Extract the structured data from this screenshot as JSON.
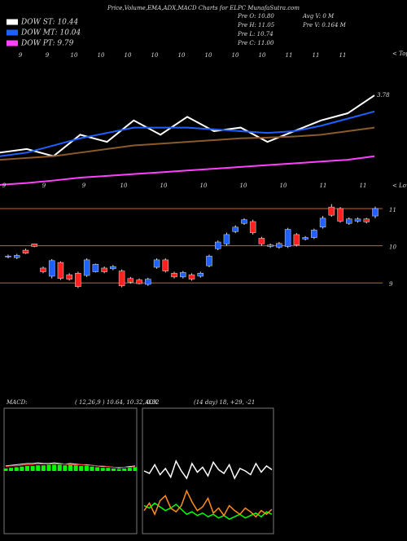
{
  "header": {
    "title": "Price,Volume,EMA,ADX,MACD Charts for ELPC MunafaSutra.com",
    "legend": [
      {
        "label": "DOW ST: 10.44",
        "color": "#ffffff"
      },
      {
        "label": "DOW MT: 10.04",
        "color": "#2060ff"
      },
      {
        "label": "DOW PT: 9.79",
        "color": "#ff40ff"
      }
    ],
    "info": [
      "Pre   O: 10.80",
      "Pre   H: 11.05",
      "Pre   L: 10.74",
      "Pre   C: 11.00"
    ],
    "volume": [
      "Avg V: 0   M",
      "Pre   V: 0.164   M"
    ]
  },
  "chart_data": [
    {
      "type": "line",
      "ylim": [
        7.4,
        11.5
      ],
      "end_label": "3.78",
      "tops_label": "< Tops",
      "lows_label": "< Lows",
      "top_labels": [
        "9",
        "9",
        "10",
        "10",
        "10",
        "10",
        "10",
        "10",
        "10",
        "10",
        "11",
        "11",
        "11"
      ],
      "bottom_labels": [
        "9",
        "9",
        "9",
        "10",
        "10",
        "10",
        "10",
        "10",
        "11",
        "11"
      ],
      "series": [
        {
          "color": "#ffffff",
          "values": [
            8.6,
            8.7,
            8.5,
            9.1,
            8.9,
            9.5,
            9.1,
            9.6,
            9.2,
            9.3,
            8.9,
            9.2,
            9.5,
            9.7,
            10.2
          ]
        },
        {
          "color": "#2060ff",
          "values": [
            8.5,
            8.6,
            8.8,
            9.0,
            9.15,
            9.3,
            9.3,
            9.3,
            9.25,
            9.2,
            9.15,
            9.2,
            9.35,
            9.55,
            9.75
          ]
        },
        {
          "color": "#8b5a2b",
          "values": [
            8.4,
            8.45,
            8.5,
            8.6,
            8.7,
            8.8,
            8.85,
            8.9,
            8.95,
            9.0,
            9.02,
            9.05,
            9.1,
            9.2,
            9.3
          ]
        },
        {
          "color": "#ff40ff",
          "values": [
            7.7,
            7.75,
            7.82,
            7.9,
            7.95,
            8.0,
            8.05,
            8.1,
            8.15,
            8.2,
            8.25,
            8.3,
            8.35,
            8.4,
            8.5
          ]
        }
      ]
    },
    {
      "type": "candlestick",
      "ylim": [
        8.5,
        11.35
      ],
      "yticks": [
        9,
        10,
        11
      ],
      "grid": true,
      "grid_color": "#c8641e",
      "up_color": "#2060ff",
      "down_color": "#ff2020",
      "open": [
        9.7,
        9.68,
        9.88,
        10.05,
        9.4,
        9.18,
        9.55,
        9.22,
        9.26,
        9.2,
        9.3,
        9.4,
        9.38,
        9.32,
        9.12,
        9.08,
        8.96,
        9.42,
        9.62,
        9.26,
        9.16,
        9.22,
        9.18,
        9.46,
        9.92,
        10.05,
        10.38,
        10.6,
        10.65,
        10.2,
        9.98,
        9.96,
        9.98,
        10.3,
        10.18,
        10.22,
        10.5,
        11.04,
        11.0,
        10.6,
        10.66,
        10.72,
        10.8
      ],
      "high": [
        9.76,
        9.78,
        9.92,
        10.06,
        9.44,
        9.64,
        9.58,
        9.26,
        9.3,
        9.66,
        9.52,
        9.44,
        9.48,
        9.36,
        9.16,
        9.12,
        9.14,
        9.66,
        9.66,
        9.3,
        9.32,
        9.26,
        9.3,
        9.76,
        10.14,
        10.35,
        10.55,
        10.74,
        10.7,
        10.24,
        10.06,
        10.1,
        10.48,
        10.34,
        10.26,
        10.46,
        10.8,
        11.12,
        11.04,
        10.76,
        10.76,
        10.75,
        11.05
      ],
      "low": [
        9.66,
        9.64,
        9.78,
        9.96,
        9.26,
        9.12,
        9.08,
        9.06,
        8.86,
        9.16,
        9.28,
        9.26,
        9.34,
        8.88,
        8.98,
        8.96,
        8.92,
        9.38,
        9.28,
        9.12,
        9.12,
        9.06,
        9.14,
        9.42,
        9.88,
        10.0,
        10.34,
        10.56,
        10.3,
        10.0,
        9.94,
        9.92,
        9.94,
        9.98,
        10.14,
        10.18,
        10.46,
        10.78,
        10.62,
        10.56,
        10.62,
        10.6,
        10.74
      ],
      "close": [
        9.72,
        9.74,
        9.8,
        9.98,
        9.3,
        9.6,
        9.12,
        9.1,
        8.9,
        9.62,
        9.5,
        9.3,
        9.44,
        8.92,
        9.02,
        8.98,
        9.1,
        9.62,
        9.32,
        9.16,
        9.28,
        9.1,
        9.26,
        9.72,
        10.1,
        10.3,
        10.5,
        10.7,
        10.35,
        10.05,
        10.02,
        10.06,
        10.44,
        10.02,
        10.22,
        10.42,
        10.74,
        10.82,
        10.66,
        10.72,
        10.72,
        10.64,
        11.0
      ]
    },
    {
      "type": "macd",
      "title": "MACD:",
      "subtitle": "( 12,26,9 ) 10.64,  10.32,  0.32",
      "ylim": [
        -1,
        1
      ],
      "series": [
        {
          "kind": "bar",
          "color": "#00ff00",
          "values": [
            0.04,
            0.05,
            0.06,
            0.07,
            0.08,
            0.08,
            0.09,
            0.09,
            0.1,
            0.1,
            0.1,
            0.09,
            0.1,
            0.09,
            0.08,
            0.08,
            0.07,
            0.06,
            0.05,
            0.05,
            0.04,
            0.03,
            0.04,
            0.05,
            0.06
          ]
        },
        {
          "kind": "line",
          "color": "#ffffff",
          "values": [
            0.08,
            0.09,
            0.1,
            0.11,
            0.12,
            0.12,
            0.13,
            0.12,
            0.12,
            0.13,
            0.12,
            0.11,
            0.12,
            0.11,
            0.1,
            0.1,
            0.09,
            0.08,
            0.07,
            0.07,
            0.06,
            0.05,
            0.06,
            0.07,
            0.08
          ]
        },
        {
          "kind": "line",
          "color": "#ff3030",
          "values": [
            0.07,
            0.08,
            0.08,
            0.09,
            0.1,
            0.1,
            0.11,
            0.11,
            0.11,
            0.11,
            0.11,
            0.11,
            0.1,
            0.1,
            0.1,
            0.09,
            0.09,
            0.08,
            0.08,
            0.07,
            0.06,
            0.06,
            0.06,
            0.06,
            0.07
          ]
        }
      ]
    },
    {
      "type": "adx",
      "title": "ADX",
      "subtitle": "(14  day) 18,  +29,  -21",
      "ylim": [
        0,
        100
      ],
      "series": [
        {
          "kind": "line",
          "color": "#ffffff",
          "values": [
            50,
            48,
            55,
            47,
            52,
            45,
            58,
            50,
            44,
            56,
            49,
            53,
            46,
            57,
            51,
            48,
            55,
            44,
            52,
            50,
            47,
            56,
            49,
            54,
            51
          ]
        },
        {
          "kind": "line",
          "color": "#00ff00",
          "values": [
            22,
            20,
            24,
            21,
            18,
            20,
            23,
            19,
            15,
            17,
            14,
            16,
            13,
            15,
            12,
            14,
            11,
            13,
            15,
            12,
            14,
            16,
            13,
            17,
            15
          ]
        },
        {
          "kind": "line",
          "color": "#ff8c1a",
          "values": [
            18,
            24,
            15,
            26,
            30,
            20,
            17,
            22,
            34,
            25,
            18,
            21,
            28,
            16,
            20,
            14,
            22,
            18,
            15,
            20,
            17,
            13,
            18,
            15,
            19
          ]
        }
      ]
    }
  ]
}
